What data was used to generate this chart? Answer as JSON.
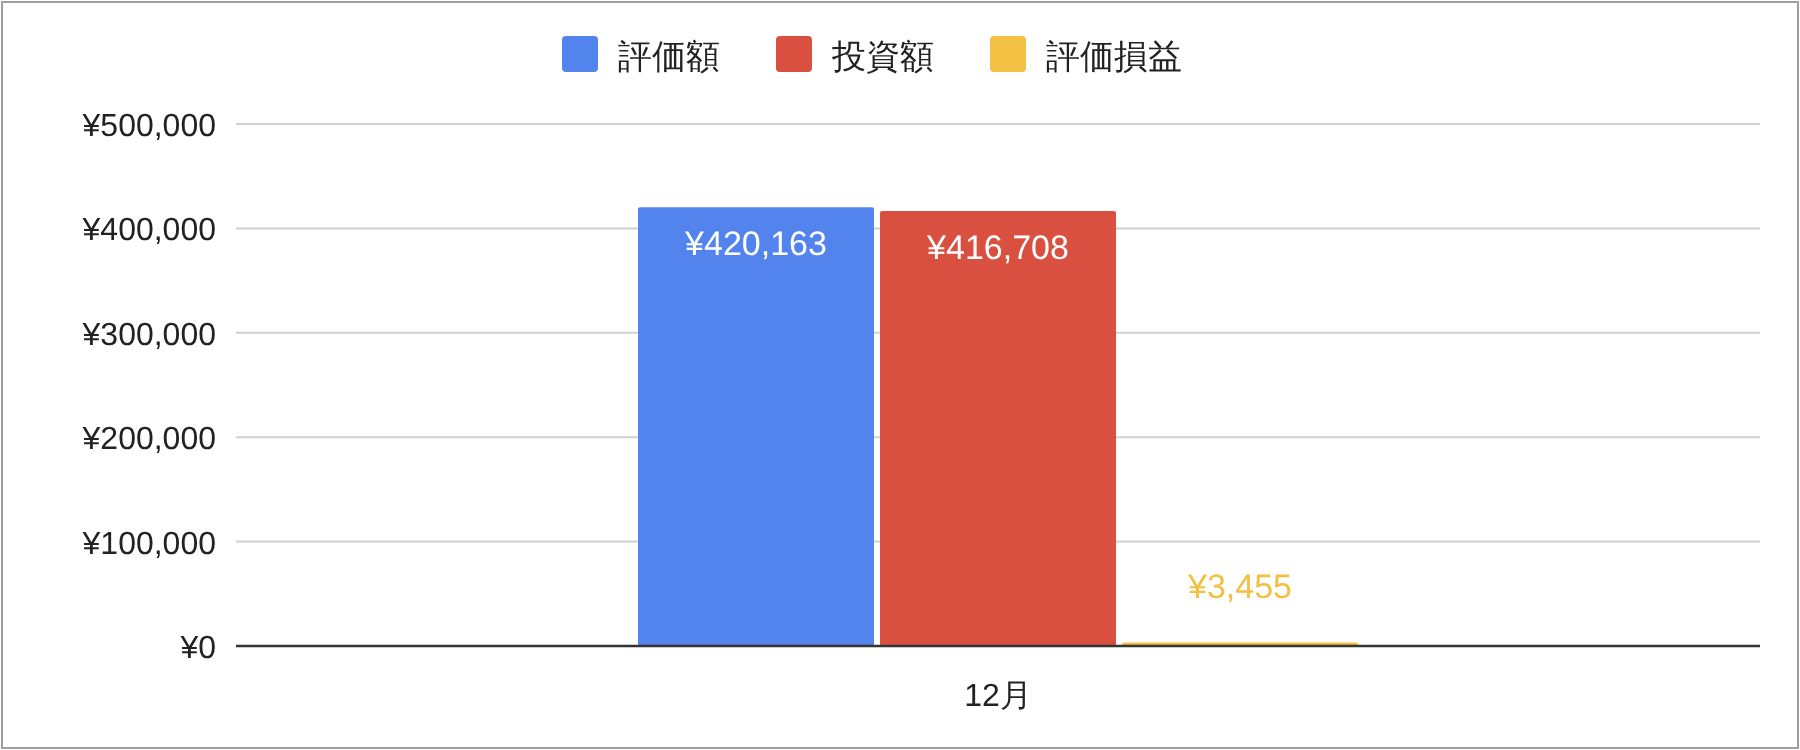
{
  "chart_data": {
    "type": "bar",
    "categories": [
      "12月"
    ],
    "series": [
      {
        "name": "評価額",
        "color": "#5384ed",
        "values": [
          420163
        ],
        "value_labels": [
          "¥420,163"
        ]
      },
      {
        "name": "投資額",
        "color": "#d95040",
        "values": [
          416708
        ],
        "value_labels": [
          "¥416,708"
        ]
      },
      {
        "name": "評価損益",
        "color": "#f2c042",
        "values": [
          3455
        ],
        "value_labels": [
          "¥3,455"
        ]
      }
    ],
    "ylim": [
      0,
      500000
    ],
    "yticks": [
      {
        "value": 0,
        "label": "¥0"
      },
      {
        "value": 100000,
        "label": "¥100,000"
      },
      {
        "value": 200000,
        "label": "¥200,000"
      },
      {
        "value": 300000,
        "label": "¥300,000"
      },
      {
        "value": 400000,
        "label": "¥400,000"
      },
      {
        "value": 500000,
        "label": "¥500,000"
      }
    ],
    "grid": "y",
    "legend": "top"
  }
}
